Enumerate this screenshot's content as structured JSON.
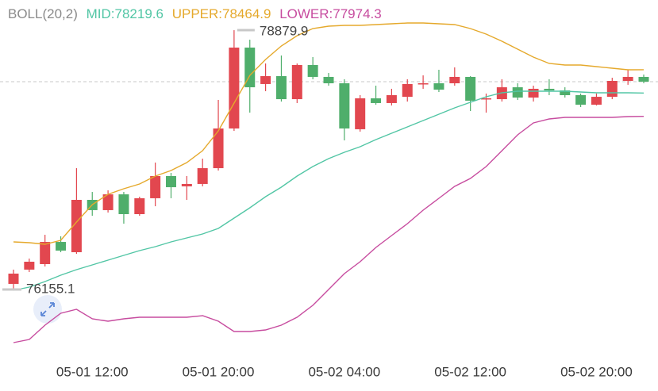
{
  "chart_data": {
    "type": "candlestick",
    "indicator": "BOLL(20,2)",
    "categories": [
      null,
      null,
      null,
      null,
      null,
      "05-01 12:00",
      null,
      null,
      null,
      null,
      null,
      null,
      null,
      "05-01 20:00",
      null,
      null,
      null,
      null,
      null,
      null,
      null,
      "05-02 04:00",
      null,
      null,
      null,
      null,
      null,
      null,
      null,
      "05-02 12:00",
      null,
      null,
      null,
      null,
      null,
      null,
      null,
      "05-02 20:00",
      null,
      null,
      null
    ],
    "open": [
      76214,
      76364,
      76422,
      76655,
      76547,
      77097,
      76989,
      77155,
      76947,
      77114,
      77347,
      77239,
      77264,
      77430,
      77847,
      78697,
      78314,
      78397,
      78155,
      78514,
      78389,
      78322,
      77839,
      78164,
      78114,
      78180,
      78314,
      78322,
      78322,
      78389,
      78155,
      78155,
      78280,
      78172,
      78264,
      78247,
      78197,
      78097,
      78180,
      78347,
      78389
    ],
    "high": [
      76364,
      76480,
      76730,
      76714,
      77430,
      77180,
      77197,
      77180,
      77130,
      77489,
      77380,
      77347,
      77530,
      78147,
      78879.9,
      78780,
      78530,
      78614,
      78530,
      78597,
      78430,
      78364,
      78197,
      78297,
      78264,
      78364,
      78405,
      78464,
      78489,
      78397,
      78214,
      78364,
      78322,
      78297,
      78364,
      78280,
      78214,
      78214,
      78380,
      78464,
      78414
    ],
    "low": [
      76155.1,
      76339,
      76397,
      76547,
      76530,
      76930,
      76964,
      76847,
      76930,
      77030,
      77114,
      77097,
      77239,
      77405,
      77822,
      78014,
      78239,
      78130,
      78114,
      78364,
      78297,
      77722,
      77814,
      78097,
      78089,
      78130,
      78264,
      78230,
      78297,
      78030,
      78014,
      78130,
      78147,
      78130,
      78197,
      78172,
      78072,
      78089,
      78155,
      78306,
      78322
    ],
    "close": [
      76322,
      76447,
      76655,
      76564,
      77097,
      76989,
      77155,
      76947,
      77114,
      77347,
      77230,
      77264,
      77430,
      77847,
      78697,
      78280,
      78397,
      78155,
      78514,
      78389,
      78322,
      77847,
      78164,
      78114,
      78197,
      78314,
      78322,
      78255,
      78389,
      78139,
      78164,
      78280,
      78172,
      78264,
      78247,
      78197,
      78097,
      78180,
      78347,
      78389,
      78339
    ],
    "up_color": "#e2474f",
    "down_color": "#4fae6b",
    "series": [
      {
        "name": "MID:78219.6",
        "color": "#52c6a5",
        "values": [
          76147,
          76180,
          76239,
          76305,
          76364,
          76414,
          76464,
          76514,
          76564,
          76605,
          76655,
          76697,
          76739,
          76797,
          76905,
          77014,
          77130,
          77230,
          77347,
          77447,
          77530,
          77597,
          77655,
          77730,
          77797,
          77864,
          77930,
          77997,
          78064,
          78122,
          78180,
          78222,
          78239,
          78239,
          78239,
          78239,
          78230,
          78222,
          78222,
          78222,
          78219.6
        ]
      },
      {
        "name": "UPPER:78464.9",
        "color": "#e5a92c",
        "values": [
          76655,
          76647,
          76630,
          76672,
          76864,
          77047,
          77155,
          77214,
          77264,
          77347,
          77405,
          77489,
          77614,
          77822,
          78114,
          78405,
          78572,
          78714,
          78822,
          78897,
          78922,
          78930,
          78930,
          78939,
          78947,
          78955,
          78955,
          78947,
          78939,
          78897,
          78839,
          78764,
          78680,
          78597,
          78530,
          78514,
          78514,
          78497,
          78480,
          78464,
          78464.9
        ]
      },
      {
        "name": "LOWER:77974.3",
        "color": "#c74c9f",
        "values": [
          75597,
          75630,
          75780,
          75905,
          75947,
          75847,
          75822,
          75847,
          75864,
          75864,
          75864,
          75864,
          75880,
          75822,
          75714,
          75714,
          75730,
          75780,
          75864,
          75989,
          76155,
          76322,
          76447,
          76597,
          76722,
          76847,
          76989,
          77114,
          77239,
          77322,
          77447,
          77614,
          77780,
          77905,
          77947,
          77964,
          77964,
          77964,
          77964,
          77972,
          77974.3
        ]
      }
    ],
    "ylim": [
      75447,
      79197
    ],
    "annotations": [
      {
        "label": "78879.9"
      },
      {
        "label": "76155.1"
      }
    ]
  }
}
